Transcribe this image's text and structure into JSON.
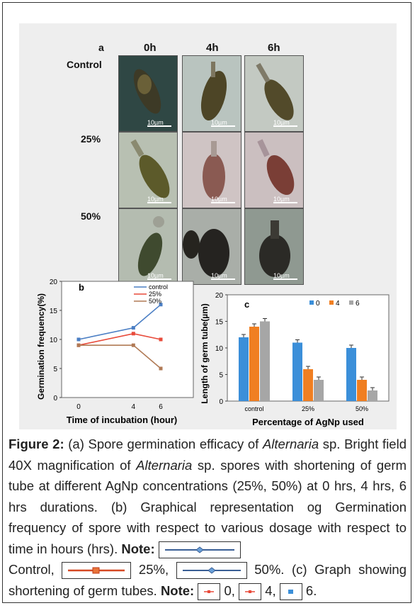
{
  "panel_a": {
    "label": "a",
    "columns": [
      "0h",
      "4h",
      "6h"
    ],
    "rows": [
      "Control",
      "25%",
      "50%"
    ],
    "scale_label": "10µm"
  },
  "chart_data": [
    {
      "panel": "b",
      "type": "line",
      "x": [
        0,
        4,
        6
      ],
      "xticks": [
        "0",
        "4",
        "6"
      ],
      "ylim": [
        0,
        20
      ],
      "yticks": [
        0,
        5,
        10,
        15,
        20
      ],
      "xlabel": "Time of incubation (hour)",
      "ylabel": "Germination frequency(%)",
      "legend_position": "top-right",
      "series": [
        {
          "name": "control",
          "color": "#4a7ec4",
          "values": [
            10,
            12,
            16
          ]
        },
        {
          "name": "25%",
          "color": "#e84a3a",
          "values": [
            9,
            11,
            10
          ]
        },
        {
          "name": "50%",
          "color": "#b07a55",
          "values": [
            9,
            9,
            5
          ]
        }
      ]
    },
    {
      "panel": "c",
      "type": "bar",
      "categories": [
        "control",
        "25%",
        "50%"
      ],
      "ylim": [
        0,
        20
      ],
      "yticks": [
        0,
        5,
        10,
        15,
        20
      ],
      "xlabel": "Percentage of AgNp used",
      "ylabel": "Length of germ tube(µm)",
      "legend_position": "top",
      "series": [
        {
          "name": "0",
          "color": "#3b8fd9",
          "values": [
            12,
            11,
            10
          ]
        },
        {
          "name": "4",
          "color": "#f07f22",
          "values": [
            14,
            6,
            4
          ]
        },
        {
          "name": "6",
          "color": "#a6a6a6",
          "values": [
            15,
            4,
            2
          ]
        }
      ]
    }
  ],
  "caption": {
    "figure_label": "Figure 2:",
    "t1": " (a) Spore germination efficacy of ",
    "genus1": "Alternaria",
    "t2": " sp. Bright field 40X magnification of ",
    "genus2": "Alternaria",
    "t3": " sp. spores with shortening of germ tube at different AgNp concentrations (25%, 50%) at 0 hrs, 4 hrs, 6 hrs durations. (b) Graphical representation og Germination frequency of spore with respect to various dosage with respect to time in hours (hrs). ",
    "note1": "Note:",
    "t4": " Control, ",
    "t5": " 25%, ",
    "t6": " 50%. (c) Graph showing shortening of germ tubes. ",
    "note2": "Note:",
    "t7": " 0, ",
    "t8": " 4, ",
    "t9": " 6."
  }
}
